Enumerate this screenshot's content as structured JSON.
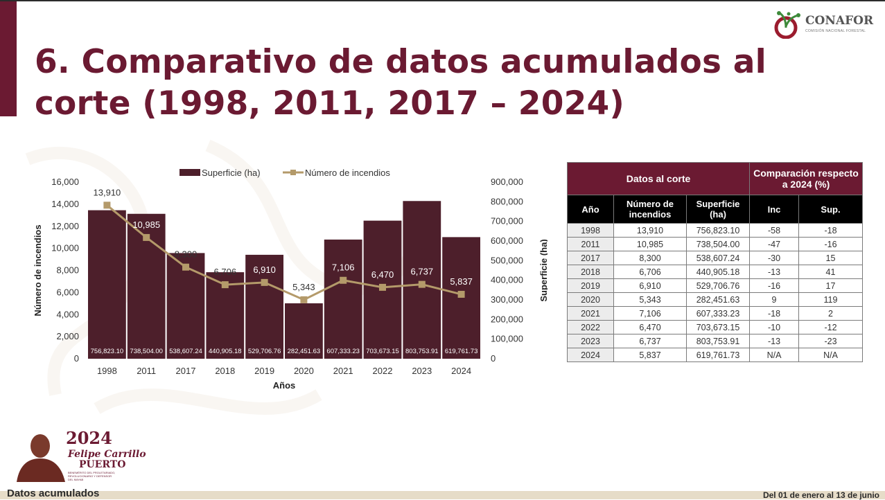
{
  "header": {
    "title": "6. Comparativo de datos acumulados al corte (1998, 2011, 2017 – 2024)",
    "logo_name": "CONAFOR",
    "logo_sub": "COMISIÓN NACIONAL FORESTAL"
  },
  "colors": {
    "accent": "#6b1a32",
    "bar": "#4d1f2b",
    "line": "#b49a6a"
  },
  "chart_data": {
    "type": "bar",
    "categories": [
      "1998",
      "2011",
      "2017",
      "2018",
      "2019",
      "2020",
      "2021",
      "2022",
      "2023",
      "2024"
    ],
    "series": [
      {
        "name": "Superficie (ha)",
        "type": "bar",
        "axis": "right",
        "values": [
          756823.1,
          738504.0,
          538607.24,
          440905.18,
          529706.76,
          282451.63,
          607333.23,
          703673.15,
          803753.91,
          619761.73
        ],
        "labels": [
          "756,823.10",
          "738,504.00",
          "538,607.24",
          "440,905.18",
          "529,706.76",
          "282,451.63",
          "607,333.23",
          "703,673.15",
          "803,753.91",
          "619,761.73"
        ]
      },
      {
        "name": "Número de incendios",
        "type": "line",
        "axis": "left",
        "values": [
          13910,
          10985,
          8300,
          6706,
          6910,
          5343,
          7106,
          6470,
          6737,
          5837
        ],
        "labels": [
          "13,910",
          "10,985",
          "8,300",
          "6,706",
          "6,910",
          "5,343",
          "7,106",
          "6,470",
          "6,737",
          "5,837"
        ]
      }
    ],
    "xlabel": "Años",
    "ylabel": "Número de incendios",
    "y2label": "Superficie (ha)",
    "ylim": [
      0,
      16000
    ],
    "y2lim": [
      0,
      900000
    ],
    "yticks": [
      "0",
      "2,000",
      "4,000",
      "6,000",
      "8,000",
      "10,000",
      "12,000",
      "14,000",
      "16,000"
    ],
    "y2ticks": [
      "0",
      "100,000",
      "200,000",
      "300,000",
      "400,000",
      "500,000",
      "600,000",
      "700,000",
      "800,000",
      "900,000"
    ],
    "legend": "top-center"
  },
  "table": {
    "group_left": "Datos al corte",
    "group_right": "Comparación respecto a 2024 (%)",
    "headers": [
      "Año",
      "Número de incendios",
      "Superficie (ha)",
      "Inc",
      "Sup."
    ],
    "rows": [
      [
        "1998",
        "13,910",
        "756,823.10",
        "-58",
        "-18"
      ],
      [
        "2011",
        "10,985",
        "738,504.00",
        "-47",
        "-16"
      ],
      [
        "2017",
        "8,300",
        "538,607.24",
        "-30",
        "15"
      ],
      [
        "2018",
        "6,706",
        "440,905.18",
        "-13",
        "41"
      ],
      [
        "2019",
        "6,910",
        "529,706.76",
        "-16",
        "17"
      ],
      [
        "2020",
        "5,343",
        "282,451.63",
        "9",
        "119"
      ],
      [
        "2021",
        "7,106",
        "607,333.23",
        "-18",
        "2"
      ],
      [
        "2022",
        "6,470",
        "703,673.15",
        "-10",
        "-12"
      ],
      [
        "2023",
        "6,737",
        "803,753.91",
        "-13",
        "-23"
      ],
      [
        "2024",
        "5,837",
        "619,761.73",
        "N/A",
        "N/A"
      ]
    ]
  },
  "badge": {
    "year": "2024",
    "line1": "Felipe Carrillo",
    "line2": "PUERTO",
    "line3": "BENEMÉRITO DEL PROLETARIADO, REVOLUCIONARIO Y DEFENSOR DEL MAYAB"
  },
  "footer": {
    "left": "Datos acumulados",
    "right": "Del 01 de enero al 13 de junio"
  }
}
